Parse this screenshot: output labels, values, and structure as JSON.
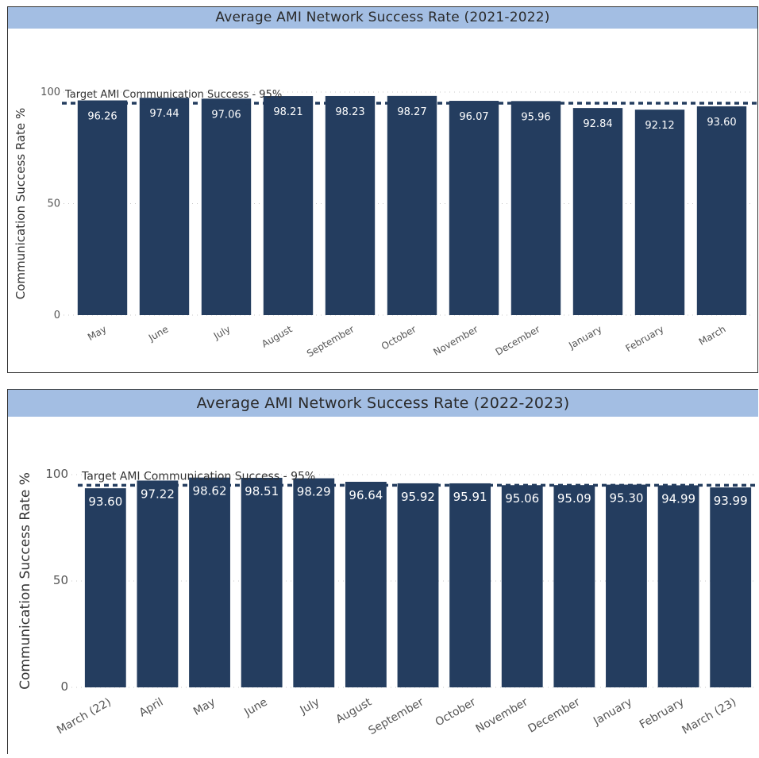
{
  "chart_data": [
    {
      "type": "bar",
      "title": "Average AMI Network Success Rate (2021-2022)",
      "ylabel": "Communication Success Rate %",
      "xlabel": "",
      "ylim": [
        0,
        100
      ],
      "yticks": [
        0,
        50,
        100
      ],
      "grid": true,
      "categories": [
        "May",
        "June",
        "July",
        "August",
        "September",
        "October",
        "November",
        "December",
        "January",
        "February",
        "March"
      ],
      "values": [
        96.26,
        97.44,
        97.06,
        98.21,
        98.23,
        98.27,
        96.07,
        95.96,
        92.84,
        92.12,
        93.6
      ],
      "value_labels": [
        "96.26",
        "97.44",
        "97.06",
        "98.21",
        "98.23",
        "98.27",
        "96.07",
        "95.96",
        "92.84",
        "92.12",
        "93.60"
      ],
      "reference_line": {
        "label": "Target AMI Communication Success - 95%",
        "value": 95,
        "style": "dashed"
      },
      "bar_color": "#243d5f"
    },
    {
      "type": "bar",
      "title": "Average AMI Network Success Rate (2022-2023)",
      "ylabel": "Communication Success Rate %",
      "xlabel": "",
      "ylim": [
        0,
        100
      ],
      "yticks": [
        0,
        50,
        100
      ],
      "grid": true,
      "categories": [
        "March (22)",
        "April",
        "May",
        "June",
        "July",
        "August",
        "September",
        "October",
        "November",
        "December",
        "January",
        "February",
        "March (23)"
      ],
      "values": [
        93.6,
        97.22,
        98.62,
        98.51,
        98.29,
        96.64,
        95.92,
        95.91,
        95.06,
        95.09,
        95.3,
        94.99,
        93.99
      ],
      "value_labels": [
        "93.60",
        "97.22",
        "98.62",
        "98.51",
        "98.29",
        "96.64",
        "95.92",
        "95.91",
        "95.06",
        "95.09",
        "95.30",
        "94.99",
        "93.99"
      ],
      "reference_line": {
        "label": "Target AMI Communication Success - 95%",
        "value": 95,
        "style": "dashed"
      },
      "bar_color": "#243d5f"
    }
  ],
  "colors": {
    "title_bar": "#a3bee3",
    "bar": "#243d5f",
    "reference_line": "#243d5f"
  }
}
